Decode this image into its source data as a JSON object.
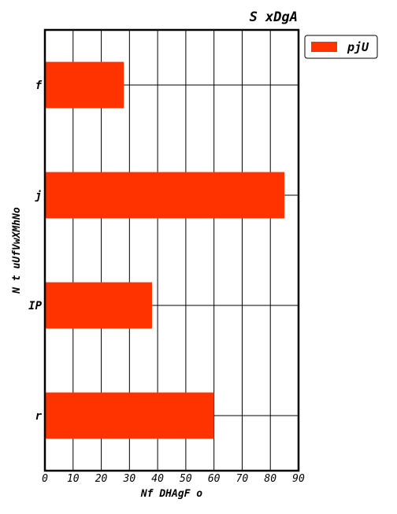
{
  "chart_data": {
    "type": "bar",
    "orientation": "horizontal",
    "title": "S xDgA",
    "xlabel": "Nf DHAgF  o",
    "ylabel": "N t uUfVwXMhNo",
    "categories": [
      "f",
      "j",
      "IP",
      "r"
    ],
    "series": [
      {
        "name": "pjU",
        "values": [
          28,
          85,
          38,
          60
        ],
        "color": "#ff3300"
      }
    ],
    "xlim": [
      0,
      90
    ],
    "xticks": [
      0,
      10,
      20,
      30,
      40,
      50,
      60,
      70,
      80,
      90
    ],
    "grid": true,
    "legend_position": "outside-top-right"
  }
}
